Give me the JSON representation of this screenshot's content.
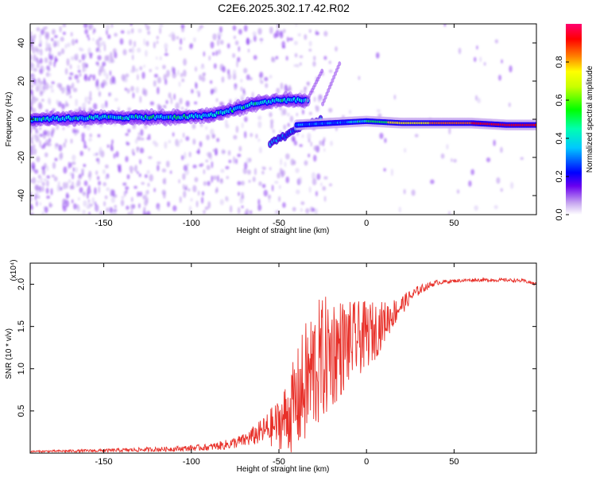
{
  "title": "C2E6.2025.302.17.42.R02",
  "chart_data": [
    {
      "type": "heatmap",
      "name": "spectrogram",
      "xlabel": "Height of straight line (km)",
      "ylabel": "Frequency (Hz)",
      "xlim": [
        -192,
        97
      ],
      "ylim": [
        -50,
        50
      ],
      "xticks": [
        -150,
        -100,
        -50,
        0,
        50
      ],
      "xtick_labels": [
        "-150",
        "-100",
        "-50",
        "0",
        "50"
      ],
      "yticks": [
        -40,
        -20,
        0,
        20,
        40
      ],
      "ytick_labels": [
        "-40",
        "-20",
        "0",
        "20",
        "40"
      ],
      "colorbar": {
        "label": "Normalized spectral amplitude",
        "range": [
          0,
          1
        ],
        "ticks": [
          0.0,
          0.2,
          0.4,
          0.6,
          0.8
        ],
        "tick_labels": [
          "0.0",
          "0.2",
          "0.4",
          "0.6",
          "0.8"
        ]
      },
      "main_track": {
        "x": [
          -192,
          -150,
          -110,
          -90,
          -80,
          -65,
          -50,
          -40,
          -35
        ],
        "y": [
          0,
          1,
          1,
          2,
          4,
          8,
          10,
          10,
          10
        ]
      },
      "lower_branch": {
        "x": [
          -55,
          -45,
          -35,
          -25
        ],
        "y": [
          -13,
          -8,
          -3,
          0
        ]
      },
      "residual_track": {
        "x": [
          -40,
          -20,
          0,
          20,
          40,
          60,
          80,
          97
        ],
        "y": [
          -3,
          -2,
          -1,
          -2,
          -2,
          -2,
          -3,
          -3
        ]
      },
      "upper_streaks": [
        {
          "x": [
            -35,
            -25
          ],
          "y": [
            8,
            26
          ]
        },
        {
          "x": [
            -25,
            -15
          ],
          "y": [
            8,
            30
          ]
        }
      ]
    },
    {
      "type": "line",
      "name": "snr",
      "xlabel": "Height of straight line (km)",
      "ylabel": "SNR (10 * v/v)",
      "y_multiplier": "(x10⁴)",
      "xlim": [
        -192,
        97
      ],
      "ylim": [
        0,
        2.25
      ],
      "xticks": [
        -150,
        -100,
        -50,
        0,
        50
      ],
      "xtick_labels": [
        "-150",
        "-100",
        "-50",
        "0",
        "50"
      ],
      "yticks": [
        0.5,
        1.0,
        1.5,
        2.0
      ],
      "ytick_labels": [
        "0.5",
        "1.0",
        "1.5",
        "2.0"
      ],
      "color": "#e8312a",
      "series": [
        {
          "name": "SNR",
          "x": [
            -192,
            -150,
            -110,
            -90,
            -80,
            -70,
            -60,
            -50,
            -45,
            -40,
            -35,
            -30,
            -25,
            -20,
            -15,
            -10,
            -5,
            0,
            5,
            10,
            15,
            20,
            25,
            30,
            35,
            40,
            50,
            60,
            70,
            80,
            90,
            97
          ],
          "y": [
            0.02,
            0.03,
            0.05,
            0.07,
            0.1,
            0.15,
            0.25,
            0.35,
            0.45,
            0.6,
            0.8,
            1.0,
            1.1,
            1.2,
            1.25,
            1.3,
            1.35,
            1.4,
            1.45,
            1.55,
            1.65,
            1.75,
            1.85,
            1.93,
            1.98,
            2.02,
            2.04,
            2.05,
            2.05,
            2.05,
            2.04,
            2.0
          ],
          "noise_amp": [
            0.01,
            0.02,
            0.03,
            0.04,
            0.06,
            0.08,
            0.15,
            0.3,
            0.45,
            0.6,
            0.75,
            0.8,
            0.75,
            0.7,
            0.6,
            0.5,
            0.45,
            0.4,
            0.35,
            0.25,
            0.18,
            0.12,
            0.08,
            0.06,
            0.04,
            0.03,
            0.02,
            0.02,
            0.02,
            0.02,
            0.02,
            0.02
          ]
        }
      ]
    }
  ]
}
